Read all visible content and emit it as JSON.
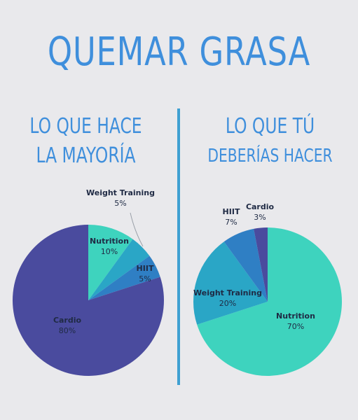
{
  "title": "QUEMAR GRASA",
  "left_heading": {
    "line1": "LO QUE HACE",
    "line2": "LA MAYORÍA"
  },
  "right_heading": {
    "line1": "LO QUE TÚ",
    "line2": "DEBERÍAS HACER"
  },
  "colors": {
    "title": "#3f8fdc",
    "divider": "#3fa0d2",
    "cardio": "#4a4b9e",
    "hiit": "#2f7fc4",
    "weight_training": "#2aa6c6",
    "nutrition": "#3ed3be"
  },
  "chart_data": [
    {
      "type": "pie",
      "title": "",
      "categories": [
        "Nutrition",
        "Weight Training",
        "HIIT",
        "Cardio"
      ],
      "values": [
        10,
        5,
        5,
        80
      ],
      "value_labels": [
        "10%",
        "5%",
        "5%",
        "80%"
      ]
    },
    {
      "type": "pie",
      "title": "",
      "categories": [
        "Nutrition",
        "Weight Training",
        "HIIT",
        "Cardio"
      ],
      "values": [
        70,
        20,
        7,
        3
      ],
      "value_labels": [
        "70%",
        "20%",
        "7%",
        "3%"
      ]
    }
  ]
}
